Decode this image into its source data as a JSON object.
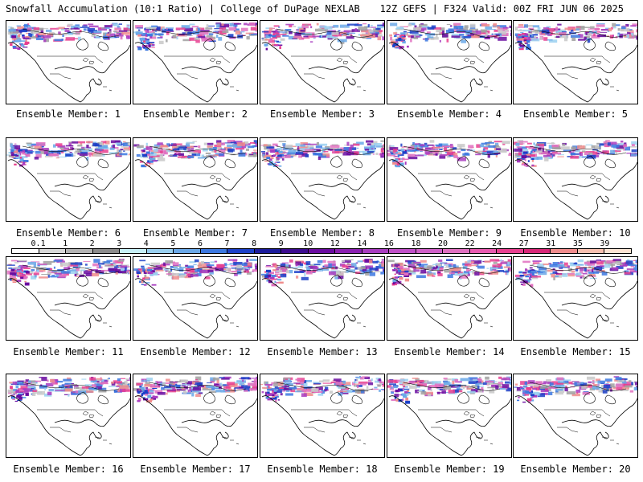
{
  "header": {
    "left": "Snowfall Accumulation (10:1 Ratio) | College of DuPage NEXLAB",
    "right": "12Z GEFS | F324 Valid: 00Z FRI JUN 06 2025"
  },
  "colorbar": {
    "labels": [
      "0.1",
      "1",
      "2",
      "3",
      "4",
      "5",
      "6",
      "7",
      "8",
      "9",
      "10",
      "12",
      "14",
      "16",
      "18",
      "20",
      "22",
      "24",
      "27",
      "31",
      "35",
      "39"
    ],
    "colors": [
      "#ffffff",
      "#d8d8d8",
      "#b4b4b4",
      "#8c8c8c",
      "#c8f0f8",
      "#9ad0f0",
      "#6aa8e8",
      "#3c78e0",
      "#1c40c8",
      "#1c1c9c",
      "#3c0c90",
      "#6a0ca0",
      "#8a20b0",
      "#a83cc0",
      "#c050c8",
      "#d060c8",
      "#e070c0",
      "#e85ab0",
      "#e84090",
      "#d82878",
      "#f08c8c",
      "#f8c0b0",
      "#fde4d4"
    ]
  },
  "members": [
    {
      "label": "Ensemble Member: 1"
    },
    {
      "label": "Ensemble Member: 2"
    },
    {
      "label": "Ensemble Member: 3"
    },
    {
      "label": "Ensemble Member: 4"
    },
    {
      "label": "Ensemble Member: 5"
    },
    {
      "label": "Ensemble Member: 6"
    },
    {
      "label": "Ensemble Member: 7"
    },
    {
      "label": "Ensemble Member: 8"
    },
    {
      "label": "Ensemble Member: 9"
    },
    {
      "label": "Ensemble Member: 10"
    },
    {
      "label": "Ensemble Member: 11"
    },
    {
      "label": "Ensemble Member: 12"
    },
    {
      "label": "Ensemble Member: 13"
    },
    {
      "label": "Ensemble Member: 14"
    },
    {
      "label": "Ensemble Member: 15"
    },
    {
      "label": "Ensemble Member: 16"
    },
    {
      "label": "Ensemble Member: 17"
    },
    {
      "label": "Ensemble Member: 18"
    },
    {
      "label": "Ensemble Member: 19"
    },
    {
      "label": "Ensemble Member: 20"
    }
  ]
}
